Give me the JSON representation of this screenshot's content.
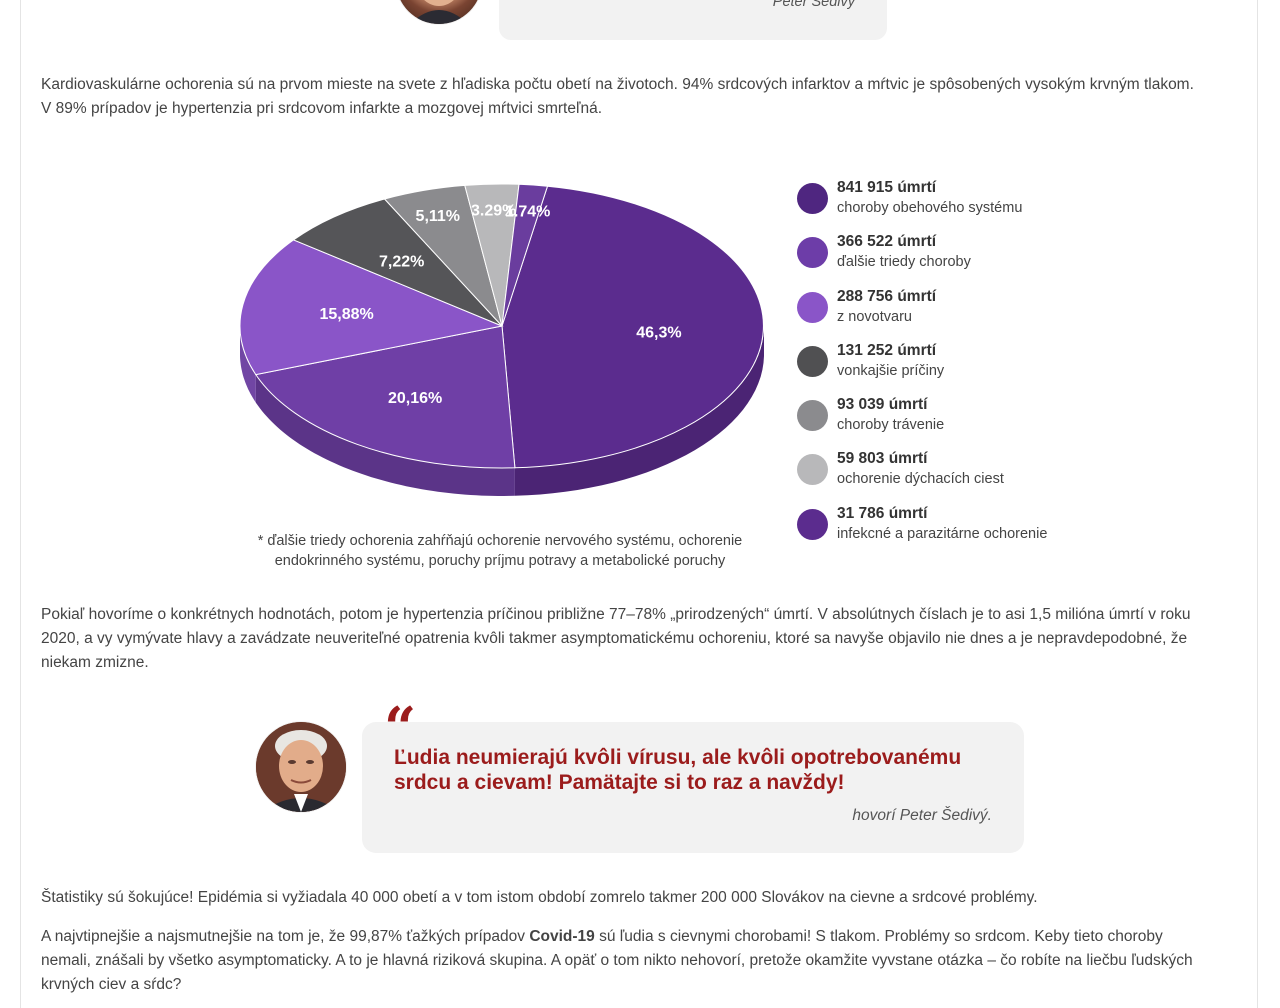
{
  "top_quote": {
    "author": "Peter Šedivý"
  },
  "intro": {
    "line1": "Kardiovaskulárne ochorenia sú na prvom mieste na svete z hľadiska počtu obetí na životoch. 94% srdcových infarktov a mŕtvic je spôsobených vysokým krvným tlakom.",
    "line2": "V 89% prípadov je hypertenzia pri srdcovom infarkte a mozgovej mŕtvici smrteľná."
  },
  "chart_data": {
    "type": "pie",
    "slices": [
      {
        "label": "46,3%",
        "value": 46.3,
        "color": "#5b2c8e"
      },
      {
        "label": "20,16%",
        "value": 20.16,
        "color": "#6f3fa6"
      },
      {
        "label": "15,88%",
        "value": 15.88,
        "color": "#8a55c8"
      },
      {
        "label": "7,22%",
        "value": 7.22,
        "color": "#555558"
      },
      {
        "label": "5,11%",
        "value": 5.11,
        "color": "#8b8b8e"
      },
      {
        "label": "3.29%",
        "value": 3.29,
        "color": "#b8b8ba"
      },
      {
        "label": "1.74%",
        "value": 1.74,
        "color": "#6a3d9e"
      }
    ],
    "legend": [
      {
        "value": "841 915 úmrtí",
        "label": "choroby obehového systému",
        "color": "#4f2680"
      },
      {
        "value": "366 522 úmrtí",
        "label": "ďalšie triedy choroby",
        "color": "#6d3da8"
      },
      {
        "value": "288 756 úmrtí",
        "label": "z novotvaru",
        "color": "#8a55c8"
      },
      {
        "value": "131 252 úmrtí",
        "label": "vonkajšie príčiny",
        "color": "#505052"
      },
      {
        "value": "93 039 úmrtí",
        "label": "choroby trávenie",
        "color": "#8b8b8e"
      },
      {
        "value": "59 803 úmrtí",
        "label": "ochorenie dýchacích ciest",
        "color": "#b8b8ba"
      },
      {
        "value": "31 786 úmrtí",
        "label": "infekcné a parazitárne ochorenie",
        "color": "#5b2c8e"
      }
    ],
    "legend_position": "right"
  },
  "footnote": {
    "line1": "* ďalšie triedy ochorenia zahŕňajú ochorenie nervového systému, ochorenie",
    "line2": "endokrinného systému, poruchy príjmu potravy a metabolické poruchy"
  },
  "para2": {
    "line1": "Pokiaľ hovoríme o konkrétnych hodnotách, potom je hypertenzia príčinou približne 77–78% „prirodzených“ úmrtí. V absolútnych číslach je to asi 1,5 milióna úmrtí v roku",
    "line2": "2020, a vy vymývate hlavy a zavádzate neuveriteľné opatrenia kvôli takmer asymptomatickému ochoreniu, ktoré sa navyše objavilo nie dnes a je nepravdepodobné, že",
    "line3": "niekam zmizne."
  },
  "quote": {
    "mark": "“",
    "line1": "Ľudia neumierajú kvôli vírusu, ale kvôli opotrebovanému",
    "line2": "srdcu a cievam! Pamätajte si to raz a navždy!",
    "author": "hovorí Peter Šedivý."
  },
  "para3": "Štatistiky sú šokujúce! Epidémia si vyžiadala 40 000 obetí a v tom istom období zomrelo takmer 200 000 Slovákov na cievne a srdcové problémy.",
  "para4": {
    "line1_pre": "A najvtipnejšie a najsmutnejšie na tom je, že 99,87% ťažkých prípadov ",
    "line1_bold": "Covid-19",
    "line1_post": " sú ľudia s cievnymi chorobami! S tlakom. Problémy so srdcom. Keby tieto choroby",
    "line2": "nemali, znášali by všetko asymptomaticky. A to je hlavná riziková skupina. A opäť o tom nikto nehovorí, pretože okamžite vyvstane otázka – čo robíte na liečbu ľudských",
    "line3": "krvných ciev a sŕdc?"
  }
}
